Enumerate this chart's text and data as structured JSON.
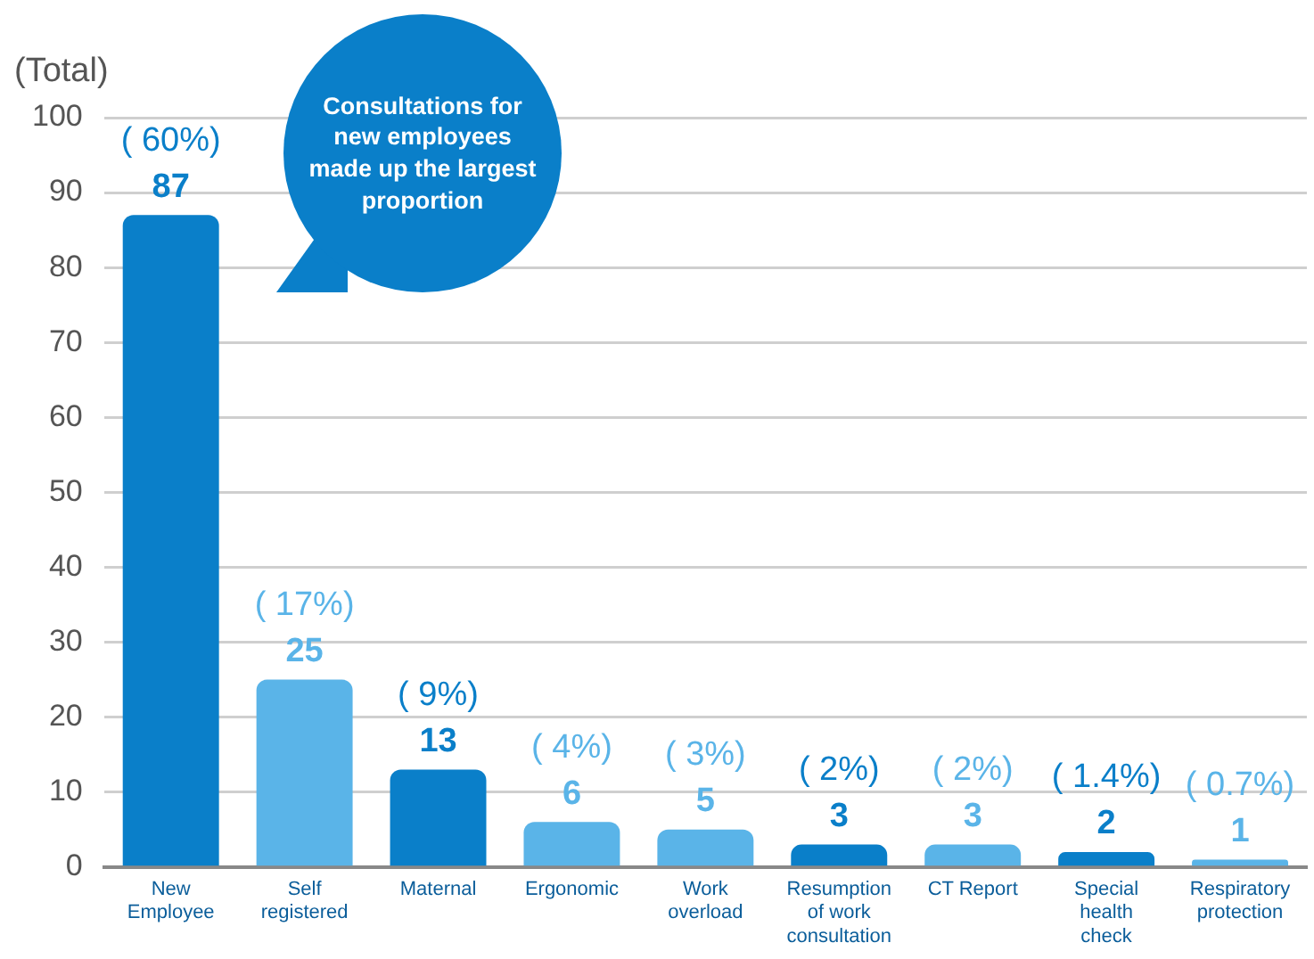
{
  "chart_data": {
    "type": "bar",
    "ylabel": "(Total)",
    "categories": [
      "New Employee",
      "Self registered",
      "Maternal",
      "Ergonomic",
      "Work overload",
      "Resumption of work consultation",
      "CT Report",
      "Special health check",
      "Respiratory protection"
    ],
    "values": [
      87,
      25,
      13,
      6,
      5,
      3,
      3,
      2,
      1
    ],
    "colors": [
      "#0a7fc9",
      "#5ab4e8",
      "#0a7fc9",
      "#5ab4e8",
      "#5ab4e8",
      "#0a7fc9",
      "#5ab4e8",
      "#0a7fc9",
      "#5ab4e8"
    ],
    "data_labels": true,
    "annotations": [
      {
        "text": "( 60%)",
        "x": "New Employee",
        "y": 87
      },
      {
        "text": "( 17%)",
        "x": "Self registered",
        "y": 25
      },
      {
        "text": "( 9%)",
        "x": "Maternal",
        "y": 13
      },
      {
        "text": "( 4%)",
        "x": "Ergonomic",
        "y": 6
      },
      {
        "text": "( 3%)",
        "x": "Work overload",
        "y": 5
      },
      {
        "text": "( 2%)",
        "x": "Resumption of work consultation",
        "y": 3
      },
      {
        "text": "( 2%)",
        "x": "CT Report",
        "y": 3
      },
      {
        "text": "( 1.4%)",
        "x": "Special health check",
        "y": 2
      },
      {
        "text": "( 0.7%)",
        "x": "Respiratory protection",
        "y": 1
      },
      "Consultations for new employees made up the largest proportion"
    ],
    "ylim": [
      0,
      100
    ],
    "yticks": [
      0,
      10,
      20,
      30,
      40,
      50,
      60,
      70,
      80,
      90,
      100
    ],
    "grid": "y"
  }
}
